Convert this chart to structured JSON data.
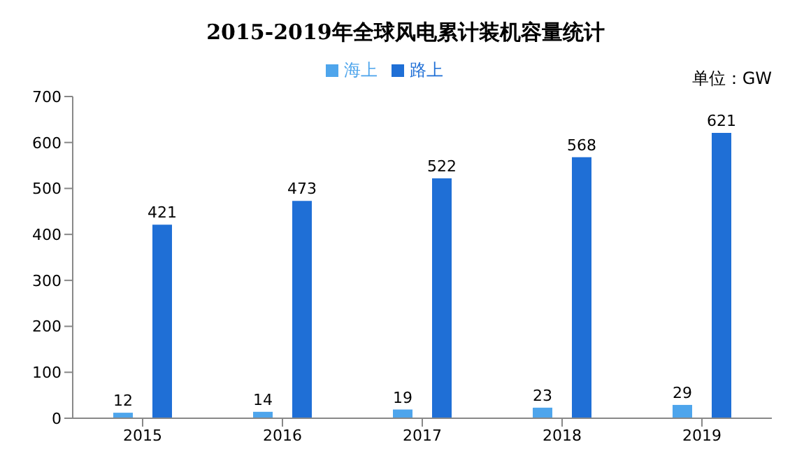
{
  "chart_data": {
    "type": "bar",
    "title": "2015-2019年全球风电累计装机容量统计",
    "categories": [
      "2015",
      "2016",
      "2017",
      "2018",
      "2019"
    ],
    "series": [
      {
        "name": "海上",
        "color": "#4ea5ec",
        "values": [
          12,
          14,
          19,
          23,
          29
        ]
      },
      {
        "name": "路上",
        "color": "#1f6fd6",
        "values": [
          421,
          473,
          522,
          568,
          621
        ]
      }
    ],
    "ylim": [
      0,
      700
    ],
    "yticks": [
      0,
      100,
      200,
      300,
      400,
      500,
      600,
      700
    ],
    "grid": false,
    "legend": "top",
    "data_labels": true,
    "annotations": [
      "单位：GW"
    ]
  }
}
